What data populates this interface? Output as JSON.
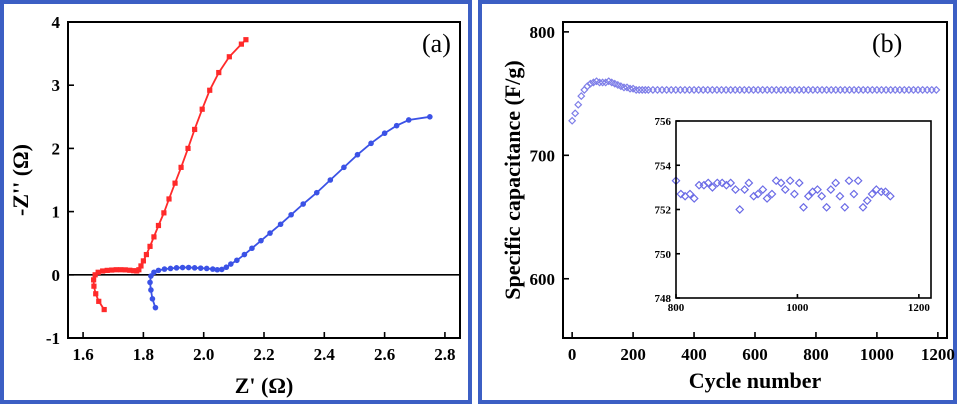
{
  "chart_data": [
    {
      "panel_label": "(a)",
      "type": "line",
      "xlabel": "Z' (Ω)",
      "ylabel": "-Z'' (Ω)",
      "xlim": [
        1.55,
        2.85
      ],
      "ylim": [
        -1,
        4
      ],
      "xticks": [
        1.6,
        1.8,
        2.0,
        2.2,
        2.4,
        2.6,
        2.8
      ],
      "yticks": [
        -1,
        0,
        1,
        2,
        3,
        4
      ],
      "xtick_labels": [
        "1.6",
        "1.8",
        "2.0",
        "2.2",
        "2.4",
        "2.6",
        "2.8"
      ],
      "ytick_labels": [
        "-1",
        "0",
        "1",
        "2",
        "3",
        "4"
      ],
      "zero_line": true,
      "grid": false,
      "series": [
        {
          "color": "#ff2a2a",
          "marker": "square",
          "points": [
            [
              1.67,
              -0.55
            ],
            [
              1.652,
              -0.42
            ],
            [
              1.642,
              -0.3
            ],
            [
              1.636,
              -0.18
            ],
            [
              1.635,
              -0.08
            ],
            [
              1.64,
              0.0
            ],
            [
              1.65,
              0.04
            ],
            [
              1.665,
              0.06
            ],
            [
              1.68,
              0.07
            ],
            [
              1.695,
              0.075
            ],
            [
              1.71,
              0.08
            ],
            [
              1.725,
              0.08
            ],
            [
              1.74,
              0.078
            ],
            [
              1.755,
              0.072
            ],
            [
              1.768,
              0.065
            ],
            [
              1.778,
              0.06
            ],
            [
              1.785,
              0.08
            ],
            [
              1.792,
              0.14
            ],
            [
              1.8,
              0.22
            ],
            [
              1.81,
              0.32
            ],
            [
              1.822,
              0.45
            ],
            [
              1.835,
              0.6
            ],
            [
              1.85,
              0.78
            ],
            [
              1.868,
              0.98
            ],
            [
              1.885,
              1.2
            ],
            [
              1.905,
              1.45
            ],
            [
              1.925,
              1.7
            ],
            [
              1.948,
              2.0
            ],
            [
              1.97,
              2.3
            ],
            [
              1.995,
              2.62
            ],
            [
              2.02,
              2.92
            ],
            [
              2.05,
              3.2
            ],
            [
              2.085,
              3.45
            ],
            [
              2.125,
              3.65
            ],
            [
              2.14,
              3.72
            ]
          ]
        },
        {
          "color": "#3b52e6",
          "marker": "circle",
          "points": [
            [
              1.84,
              -0.52
            ],
            [
              1.83,
              -0.38
            ],
            [
              1.825,
              -0.24
            ],
            [
              1.822,
              -0.12
            ],
            [
              1.825,
              -0.02
            ],
            [
              1.835,
              0.04
            ],
            [
              1.85,
              0.07
            ],
            [
              1.87,
              0.09
            ],
            [
              1.89,
              0.1
            ],
            [
              1.91,
              0.11
            ],
            [
              1.93,
              0.115
            ],
            [
              1.95,
              0.115
            ],
            [
              1.97,
              0.11
            ],
            [
              1.99,
              0.105
            ],
            [
              2.01,
              0.1
            ],
            [
              2.03,
              0.09
            ],
            [
              2.045,
              0.08
            ],
            [
              2.06,
              0.085
            ],
            [
              2.075,
              0.12
            ],
            [
              2.09,
              0.17
            ],
            [
              2.11,
              0.23
            ],
            [
              2.135,
              0.32
            ],
            [
              2.16,
              0.42
            ],
            [
              2.19,
              0.54
            ],
            [
              2.22,
              0.66
            ],
            [
              2.255,
              0.8
            ],
            [
              2.29,
              0.95
            ],
            [
              2.33,
              1.12
            ],
            [
              2.375,
              1.3
            ],
            [
              2.42,
              1.5
            ],
            [
              2.465,
              1.7
            ],
            [
              2.51,
              1.9
            ],
            [
              2.555,
              2.08
            ],
            [
              2.6,
              2.24
            ],
            [
              2.64,
              2.36
            ],
            [
              2.68,
              2.45
            ],
            [
              2.75,
              2.5
            ]
          ]
        }
      ]
    },
    {
      "panel_label": "(b)",
      "type": "scatter",
      "xlabel": "Cycle number",
      "ylabel": "Specific capacitance (F/g)",
      "xlim": [
        -30,
        1230
      ],
      "ylim": [
        552,
        808
      ],
      "xticks": [
        0,
        200,
        400,
        600,
        800,
        1000,
        1200
      ],
      "yticks": [
        600,
        700,
        800
      ],
      "xtick_labels": [
        "0",
        "200",
        "400",
        "600",
        "800",
        "1000",
        "1200"
      ],
      "ytick_labels": [
        "600",
        "700",
        "800"
      ],
      "grid": false,
      "series": [
        {
          "color": "#7e7ee8",
          "marker": "diamond-open",
          "points": [
            [
              0,
              728
            ],
            [
              10,
              734
            ],
            [
              20,
              741
            ],
            [
              30,
              748
            ],
            [
              40,
              753
            ],
            [
              50,
              756
            ],
            [
              60,
              758
            ],
            [
              70,
              759
            ],
            [
              80,
              760
            ],
            [
              90,
              759
            ],
            [
              100,
              759
            ],
            [
              110,
              759
            ],
            [
              120,
              760
            ],
            [
              130,
              759
            ],
            [
              140,
              758
            ],
            [
              150,
              757
            ],
            [
              160,
              756
            ],
            [
              170,
              755
            ],
            [
              180,
              755
            ],
            [
              190,
              754
            ],
            [
              200,
              754
            ],
            [
              210,
              753
            ],
            [
              220,
              753
            ],
            [
              230,
              753
            ],
            [
              240,
              753
            ]
          ]
        }
      ],
      "plateau": {
        "x_start": 250,
        "x_end": 1200,
        "step": 15,
        "value": 753
      },
      "inset": {
        "xlim": [
          800,
          1220
        ],
        "ylim": [
          748,
          756
        ],
        "xticks": [
          800,
          1000,
          1200
        ],
        "yticks": [
          748,
          750,
          752,
          754,
          756
        ],
        "xtick_labels": [
          "800",
          "1000",
          "1200"
        ],
        "ytick_labels": [
          "748",
          "750",
          "752",
          "754",
          "756"
        ],
        "series": [
          {
            "color": "#6b6be6",
            "marker": "diamond-open",
            "points": [
              [
                800,
                753.3
              ],
              [
                808,
                752.7
              ],
              [
                815,
                752.6
              ],
              [
                823,
                752.7
              ],
              [
                830,
                752.5
              ],
              [
                838,
                753.1
              ],
              [
                846,
                753.1
              ],
              [
                853,
                753.2
              ],
              [
                860,
                753.0
              ],
              [
                868,
                753.2
              ],
              [
                876,
                753.2
              ],
              [
                883,
                753.1
              ],
              [
                890,
                753.2
              ],
              [
                898,
                752.9
              ],
              [
                905,
                752.0
              ],
              [
                913,
                752.9
              ],
              [
                920,
                753.2
              ],
              [
                928,
                752.6
              ],
              [
                935,
                752.7
              ],
              [
                943,
                752.9
              ],
              [
                950,
                752.5
              ],
              [
                958,
                752.7
              ],
              [
                965,
                753.3
              ],
              [
                973,
                753.2
              ],
              [
                980,
                752.9
              ],
              [
                988,
                753.3
              ],
              [
                995,
                752.7
              ],
              [
                1003,
                753.2
              ],
              [
                1010,
                752.1
              ],
              [
                1018,
                752.6
              ],
              [
                1025,
                752.8
              ],
              [
                1033,
                752.9
              ],
              [
                1040,
                752.6
              ],
              [
                1048,
                752.1
              ],
              [
                1055,
                752.9
              ],
              [
                1063,
                753.2
              ],
              [
                1070,
                752.6
              ],
              [
                1078,
                752.1
              ],
              [
                1085,
                753.3
              ],
              [
                1093,
                752.7
              ],
              [
                1100,
                753.3
              ],
              [
                1108,
                752.1
              ],
              [
                1115,
                752.4
              ],
              [
                1123,
                752.7
              ],
              [
                1130,
                752.9
              ],
              [
                1138,
                752.8
              ],
              [
                1145,
                752.8
              ],
              [
                1153,
                752.6
              ]
            ]
          }
        ]
      }
    }
  ]
}
